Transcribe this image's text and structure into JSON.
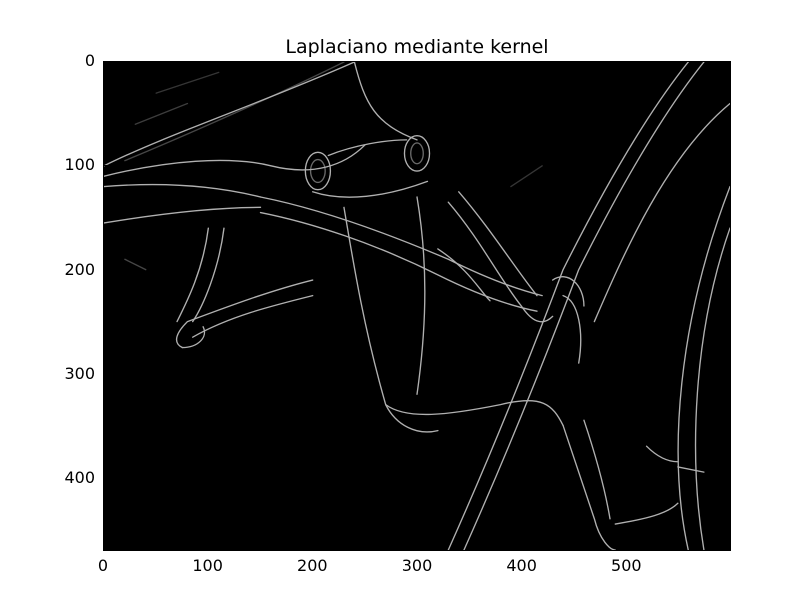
{
  "figure": {
    "title": "Laplaciano mediante kernel"
  },
  "axes": {
    "x_ticks": [
      "0",
      "100",
      "200",
      "300",
      "400",
      "500"
    ],
    "x_values": [
      0,
      100,
      200,
      300,
      400,
      500
    ],
    "y_ticks": [
      "0",
      "100",
      "200",
      "300",
      "400"
    ],
    "y_values": [
      0,
      100,
      200,
      300,
      400
    ],
    "xlim": [
      0,
      600
    ],
    "ylim": [
      470,
      0
    ],
    "image_background": "#000000",
    "edge_color": "#d8d8d8"
  }
}
